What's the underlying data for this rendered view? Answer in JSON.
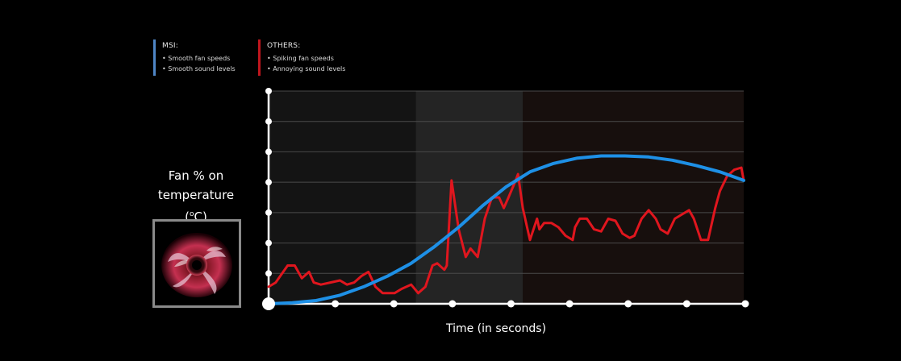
{
  "legend": {
    "msi": {
      "title": "MSI:",
      "items": [
        "• Smooth fan speeds",
        "• Smooth sound levels"
      ],
      "color": "#4f86c6"
    },
    "others": {
      "title": "OTHERS:",
      "items": [
        "• Spiking fan speeds",
        "• Annoying sound levels"
      ],
      "color": "#c0161d"
    }
  },
  "axes": {
    "ylabel_line1": "Fan % on",
    "ylabel_line2": "temperature (",
    "ylabel_unit_sup": "o",
    "ylabel_unit_end": "C)",
    "xlabel": "Time (in seconds)"
  },
  "image": {
    "icon": "fan-icon"
  },
  "chart_data": {
    "type": "line",
    "title": "",
    "xlabel": "Time (in seconds)",
    "ylabel": "Fan % on temperature (oC)",
    "xlim": [
      0,
      100
    ],
    "ylim": [
      0,
      100
    ],
    "grid": true,
    "tick_labels_shown": false,
    "highlight_band": [
      31,
      53.5
    ],
    "series": [
      {
        "name": "MSI",
        "color": "#1e90e6",
        "x": [
          0,
          5,
          10,
          15,
          20,
          25,
          30,
          35,
          40,
          45,
          50,
          55,
          60,
          65,
          70,
          75,
          80,
          85,
          90,
          95,
          100
        ],
        "y": [
          0,
          0.5,
          1.5,
          4,
          8,
          13,
          19,
          27,
          36,
          46,
          55,
          62,
          66,
          68.5,
          69.5,
          69.5,
          69,
          67.5,
          65,
          62,
          58
        ]
      },
      {
        "name": "OTHERS",
        "color": "#e0161e",
        "x": [
          0,
          1.5,
          4,
          5.5,
          7,
          8.5,
          9.5,
          11,
          13,
          15,
          16.5,
          18,
          19.5,
          21,
          22.5,
          24,
          25.5,
          26.5,
          28,
          30,
          31.5,
          33,
          34.5,
          35.5,
          37,
          37.5,
          38.5,
          40,
          41.5,
          42.5,
          44,
          45.5,
          47,
          48.5,
          49.5,
          50.5,
          52,
          52.5,
          53.5,
          55,
          56.5,
          57,
          58,
          59.5,
          61,
          62.5,
          64,
          64.5,
          65.5,
          67,
          68.5,
          70,
          71.5,
          73,
          74.5,
          76,
          77,
          78.5,
          80,
          81.5,
          82.5,
          84,
          85.5,
          87,
          88.5,
          89.5,
          91,
          92.5,
          94,
          95,
          96.5,
          98,
          99.5,
          100
        ],
        "y": [
          8,
          10,
          18,
          18,
          12,
          15,
          10,
          9,
          10,
          11,
          9,
          10,
          13,
          15,
          8,
          5,
          5,
          5,
          7,
          9,
          5,
          8,
          18,
          19,
          16,
          18,
          58,
          35,
          22,
          26,
          22,
          40,
          50,
          50,
          45,
          50,
          58,
          61,
          45,
          30,
          40,
          35,
          38,
          38,
          36,
          32,
          30,
          36,
          40,
          40,
          35,
          34,
          40,
          39,
          33,
          31,
          32,
          40,
          44,
          40,
          35,
          33,
          40,
          42,
          44,
          40,
          30,
          30,
          45,
          53,
          60,
          63,
          64,
          58
        ]
      }
    ]
  }
}
